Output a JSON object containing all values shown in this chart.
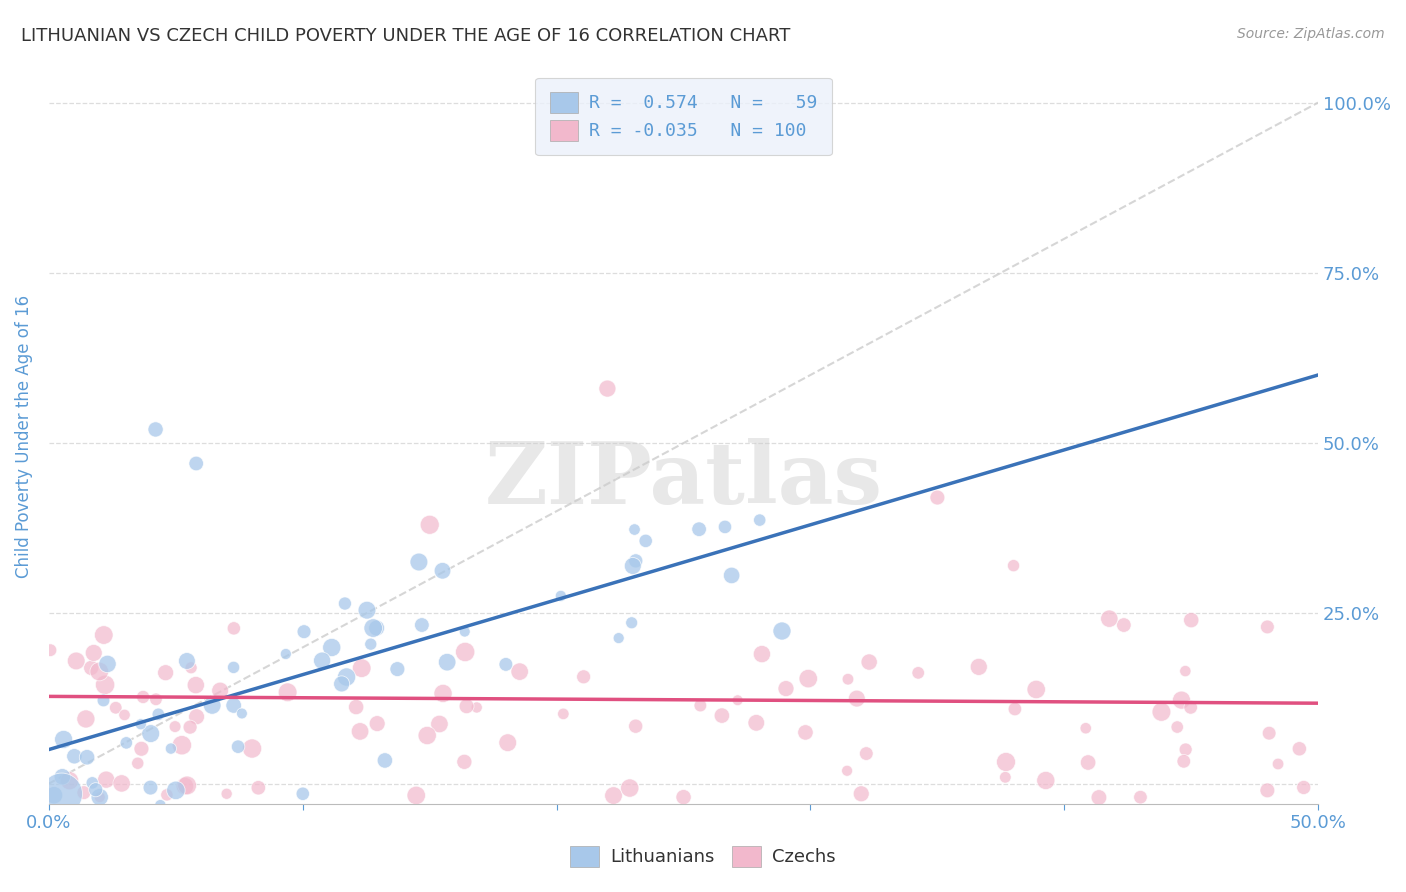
{
  "title": "LITHUANIAN VS CZECH CHILD POVERTY UNDER THE AGE OF 16 CORRELATION CHART",
  "source": "Source: ZipAtlas.com",
  "ylabel": "Child Poverty Under the Age of 16",
  "xlim": [
    0.0,
    0.5
  ],
  "ylim": [
    -0.03,
    1.05
  ],
  "xtick_labels": [
    "0.0%",
    "",
    "",
    "",
    "",
    "50.0%"
  ],
  "xtick_values": [
    0.0,
    0.1,
    0.2,
    0.3,
    0.4,
    0.5
  ],
  "ytick_values": [
    0.0,
    0.25,
    0.5,
    0.75,
    1.0
  ],
  "ytick_labels_right": [
    "",
    "25.0%",
    "50.0%",
    "75.0%",
    "100.0%"
  ],
  "watermark": "ZIPatlas",
  "lithuanian_color": "#A8C8EA",
  "czech_color": "#F2B8CC",
  "legend_box_color": "#EBF1FA",
  "trend_line_lithuanian": "#3A72B8",
  "trend_line_czech": "#E05080",
  "diag_line_color": "#CCCCCC",
  "background_color": "#FFFFFF",
  "grid_color": "#DDDDDD",
  "title_color": "#333333",
  "axis_label_color": "#5B9BD5",
  "tick_label_color": "#5B9BD5",
  "legend_R_color": "#5B9BD5",
  "legend_N_color": "#5B9BD5"
}
